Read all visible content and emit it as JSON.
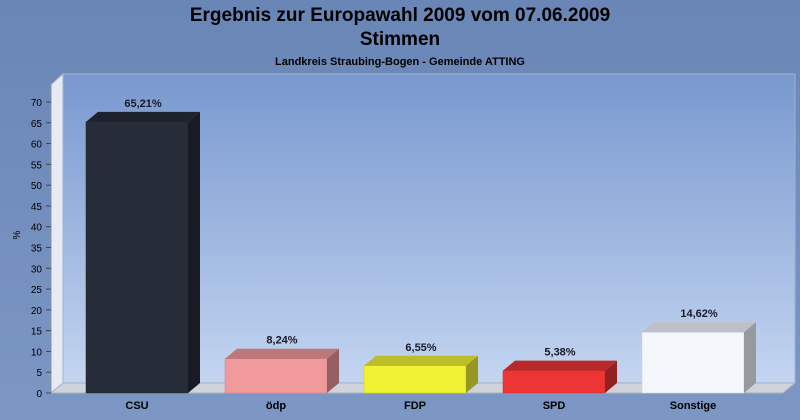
{
  "chart_data": {
    "type": "bar",
    "title": "Ergebnis zur Europawahl 2009 vom 07.06.2009",
    "title_line2": "Stimmen",
    "subtitle": "Landkreis Straubing-Bogen - Gemeinde ATTING",
    "ylabel": "%",
    "xlabel": "",
    "ylim": [
      0,
      70
    ],
    "yticks": [
      0,
      5,
      10,
      15,
      20,
      25,
      30,
      35,
      40,
      45,
      50,
      55,
      60,
      65,
      70
    ],
    "grid": false,
    "legend": "none",
    "categories": [
      "CSU",
      "ödp",
      "FDP",
      "SPD",
      "Sonstige"
    ],
    "values": [
      65.21,
      8.24,
      6.55,
      5.38,
      14.62
    ],
    "value_labels": [
      "65,21%",
      "8,24%",
      "6,55%",
      "5,38%",
      "14,62%"
    ],
    "colors": [
      "#262c38",
      "#f19a9c",
      "#f2f235",
      "#ee3535",
      "#f4f6fc"
    ]
  }
}
